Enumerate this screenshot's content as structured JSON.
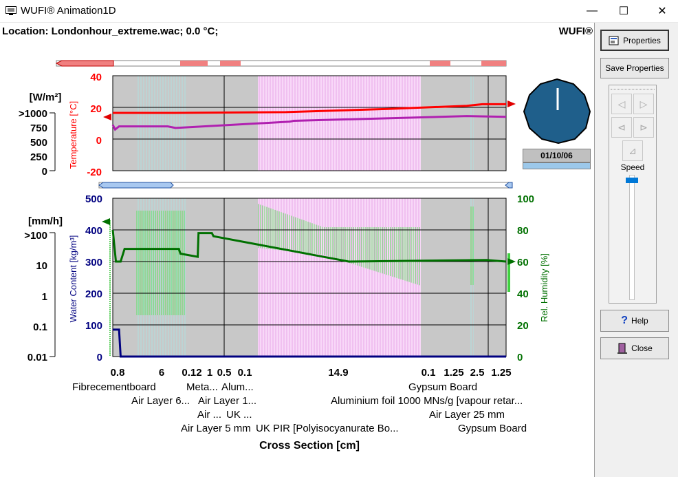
{
  "window": {
    "title": "WUFI® Animation1D",
    "minimize": "—",
    "maximize": "☐",
    "close": "✕"
  },
  "header": {
    "location": "Location: Londonhour_extreme.wac; 0.0 °C;",
    "brand": "WUFI®"
  },
  "sidebar": {
    "properties": "Properties",
    "save_properties": "Save Properties",
    "speed": "Speed",
    "help": "Help",
    "close": "Close",
    "speed_fraction": 0.02
  },
  "clock": {
    "date": "01/10/06"
  },
  "top_chart": {
    "flux_unit": "[W/m²]",
    "flux_ticks": [
      ">1000",
      "750",
      "500",
      "250",
      "0"
    ],
    "temp_axis_label": "Temperature [°C]",
    "temp_ticks": [
      "40",
      "20",
      "0",
      "-20"
    ]
  },
  "bottom_chart": {
    "rain_unit": "[mm/h]",
    "rain_ticks": [
      ">100",
      "10",
      "1",
      "0.1",
      "0.01"
    ],
    "wc_axis_label": "Water Content [kg/m³]",
    "wc_ticks": [
      "500",
      "400",
      "300",
      "200",
      "100",
      "0"
    ],
    "rh_axis_label": "Rel. Humidity [%]",
    "rh_ticks": [
      "100",
      "80",
      "60",
      "40",
      "20",
      "0"
    ]
  },
  "cross_section": {
    "thickness_labels": [
      "0.8",
      "6",
      "0.12",
      "1",
      "0.5",
      "0.1",
      "14.9",
      "0.1",
      "1.25",
      "2.5",
      "1.25"
    ],
    "layer_names": [
      "Fibrecementboard",
      "Meta...",
      "Alum...",
      "Gypsum Board",
      "Air Layer 6...",
      "Air Layer 1...",
      "Aluminium foil 1000 MNs/g [vapour retar...",
      "Air ...",
      "UK ...",
      "Air Layer 25 mm",
      "Air Layer 5 mm",
      "UK PIR [Polyisocyanurate Bo...",
      "Gypsum Board"
    ],
    "axis_title": "Cross Section [cm]"
  },
  "colors": {
    "temperature": "#ff0000",
    "surface_temp": "#b020b0",
    "humidity": "#007000",
    "water_content": "#000080",
    "insulation_fill": "#f8d0f8",
    "air_hatch": "#a0e0e0",
    "rh_band": "#78e878"
  },
  "chart_data": [
    {
      "type": "line",
      "title": "",
      "series": [
        {
          "name": "Temperature [°C]",
          "x": [
            0,
            7,
            22,
            35,
            45,
            47,
            50
          ],
          "values": [
            16.5,
            16.5,
            17,
            19,
            21,
            22,
            22
          ]
        },
        {
          "name": "",
          "x": [
            0,
            0.3,
            0.8,
            7,
            8,
            22.5,
            23,
            45,
            50
          ],
          "values": [
            9,
            6,
            8,
            8,
            7,
            11,
            11.5,
            14.5,
            14
          ]
        }
      ],
      "ylim": [
        -20,
        40
      ]
    },
    {
      "type": "line",
      "title": "",
      "series": [
        {
          "name": "Water Content [kg/m³]",
          "x": [
            0,
            0.8,
            1.0,
            50
          ],
          "values": [
            85,
            85,
            0,
            0
          ]
        },
        {
          "name": "Rel. Humidity [%]",
          "x": [
            0,
            0.4,
            1.0,
            1.5,
            8.4,
            8.6,
            10.8,
            10.9,
            12.6,
            12.8,
            30,
            47.5,
            50
          ],
          "values": [
            80,
            60,
            60,
            68,
            68,
            65,
            63,
            78,
            78,
            76,
            60,
            61,
            60
          ]
        }
      ],
      "ylim": [
        0,
        500
      ]
    }
  ]
}
